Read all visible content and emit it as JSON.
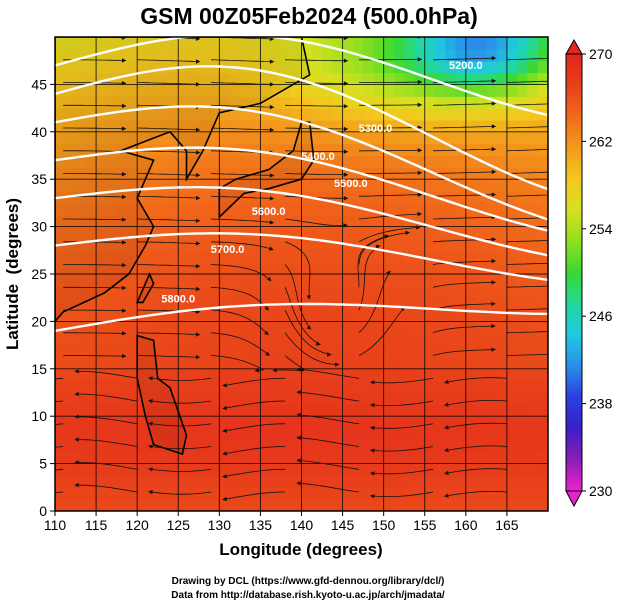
{
  "chart_data": {
    "type": "heatmap",
    "title": "GSM 00Z05Feb2024 (500.0hPa)",
    "xlabel": "Longitude (degrees)",
    "ylabel": "Latitude  (degrees)",
    "xlim": [
      110,
      170
    ],
    "ylim": [
      0,
      50
    ],
    "x_ticks": [
      "110",
      "115",
      "120",
      "125",
      "130",
      "135",
      "140",
      "145",
      "150",
      "155",
      "160",
      "165"
    ],
    "y_ticks": [
      "0",
      "5",
      "10",
      "15",
      "20",
      "25",
      "30",
      "35",
      "40",
      "45"
    ],
    "colorbar": {
      "min": 230,
      "max": 270,
      "tick_labels": [
        "270",
        "262",
        "254",
        "246",
        "238",
        "230"
      ],
      "tick_values": [
        270,
        262,
        254,
        246,
        238,
        230
      ],
      "colors": [
        "#ee22cc",
        "#8a1fb5",
        "#3a1fc8",
        "#2b3fe0",
        "#2a8ee8",
        "#20c8e0",
        "#22d89a",
        "#3ad830",
        "#8ee020",
        "#d8e020",
        "#f2c81e",
        "#f39a1c",
        "#f26a1a",
        "#e8401a",
        "#e2261e"
      ]
    },
    "contours": {
      "color": "#ffffff",
      "labels": [
        "5200.0",
        "5300.0",
        "5400.0",
        "5500.0",
        "5600.0",
        "5700.0",
        "5800.0"
      ]
    },
    "overlays": [
      "streamlines with arrows",
      "coastlines",
      "lat-lon grid"
    ],
    "grid": true
  },
  "credits": {
    "line1": "Drawing by DCL (https://www.gfd-dennou.org/library/dcl/)",
    "line2": "Data from http://database.rish.kyoto-u.ac.jp/arch/jmadata/"
  }
}
